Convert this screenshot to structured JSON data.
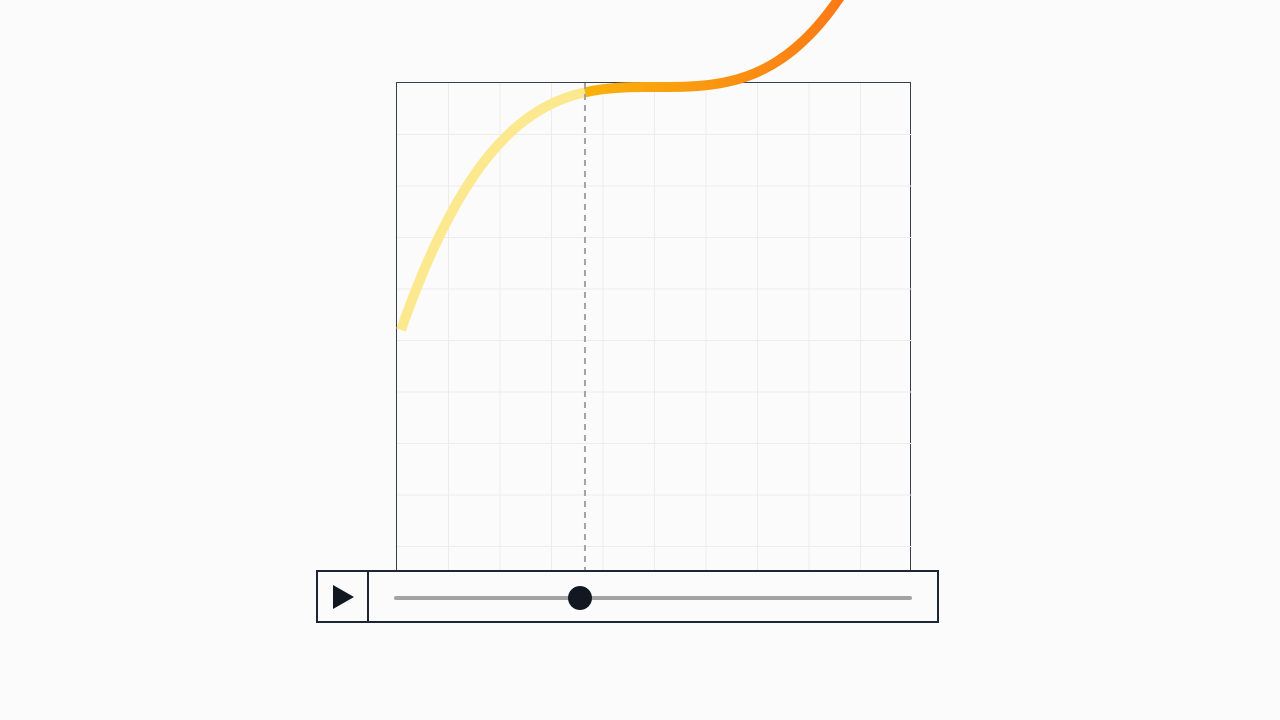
{
  "animation": {
    "progress": 0.36,
    "easing_curve": "ease-in-out-cubic",
    "colors": {
      "curve_played": "#fce98f",
      "curve_start": "#f9b20a",
      "curve_end": "#fc6a1a",
      "grid": "#ececec",
      "marker": "#a3a3a3",
      "frame": "#3a3f47",
      "thumb": "#111822"
    }
  },
  "controls": {
    "play_icon": "play-icon",
    "slider_value": 0.36
  }
}
